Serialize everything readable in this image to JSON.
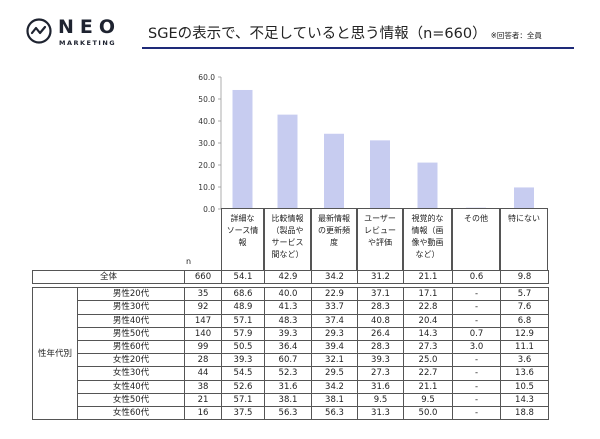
{
  "logo": {
    "word": "NEO",
    "sub": "MARKETING"
  },
  "title": "SGEの表示で、不足していると思う情報（n=660）",
  "title_note": "※回答者：全員",
  "n_label": "n",
  "chart_data": {
    "type": "bar",
    "categories": [
      "詳細な\nソース情\n報",
      "比較情報\n（製品や\nサービス\n間など）",
      "最新情報\nの更新頻\n度",
      "ユーザー\nレビュー\nや評価",
      "視覚的な\n情報（画\n像や動画\nなど）",
      "その他",
      "特にない"
    ],
    "values": [
      54.1,
      42.9,
      34.2,
      31.2,
      21.1,
      0.6,
      9.8
    ],
    "ylim": [
      0,
      60
    ],
    "yticks": [
      "0.0",
      "10.0",
      "20.0",
      "30.0",
      "40.0",
      "50.0",
      "60.0"
    ],
    "bar_color": "#c7ccf0",
    "xlabel": "",
    "ylabel": "",
    "title": ""
  },
  "table": {
    "group_label": "性年代別",
    "total": {
      "label": "全体",
      "n": "660",
      "values": [
        "54.1",
        "42.9",
        "34.2",
        "31.2",
        "21.1",
        "0.6",
        "9.8"
      ]
    },
    "rows": [
      {
        "label": "男性20代",
        "n": "35",
        "values": [
          "68.6",
          "40.0",
          "22.9",
          "37.1",
          "17.1",
          "-",
          "5.7"
        ]
      },
      {
        "label": "男性30代",
        "n": "92",
        "values": [
          "48.9",
          "41.3",
          "33.7",
          "28.3",
          "22.8",
          "-",
          "7.6"
        ]
      },
      {
        "label": "男性40代",
        "n": "147",
        "values": [
          "57.1",
          "48.3",
          "37.4",
          "40.8",
          "20.4",
          "-",
          "6.8"
        ]
      },
      {
        "label": "男性50代",
        "n": "140",
        "values": [
          "57.9",
          "39.3",
          "29.3",
          "26.4",
          "14.3",
          "0.7",
          "12.9"
        ]
      },
      {
        "label": "男性60代",
        "n": "99",
        "values": [
          "50.5",
          "36.4",
          "39.4",
          "28.3",
          "27.3",
          "3.0",
          "11.1"
        ]
      },
      {
        "label": "女性20代",
        "n": "28",
        "values": [
          "39.3",
          "60.7",
          "32.1",
          "39.3",
          "25.0",
          "-",
          "3.6"
        ]
      },
      {
        "label": "女性30代",
        "n": "44",
        "values": [
          "54.5",
          "52.3",
          "29.5",
          "27.3",
          "22.7",
          "-",
          "13.6"
        ]
      },
      {
        "label": "女性40代",
        "n": "38",
        "values": [
          "52.6",
          "31.6",
          "34.2",
          "31.6",
          "21.1",
          "-",
          "10.5"
        ]
      },
      {
        "label": "女性50代",
        "n": "21",
        "values": [
          "57.1",
          "38.1",
          "38.1",
          "9.5",
          "9.5",
          "-",
          "14.3"
        ]
      },
      {
        "label": "女性60代",
        "n": "16",
        "values": [
          "37.5",
          "56.3",
          "56.3",
          "31.3",
          "50.0",
          "-",
          "18.8"
        ]
      }
    ]
  }
}
